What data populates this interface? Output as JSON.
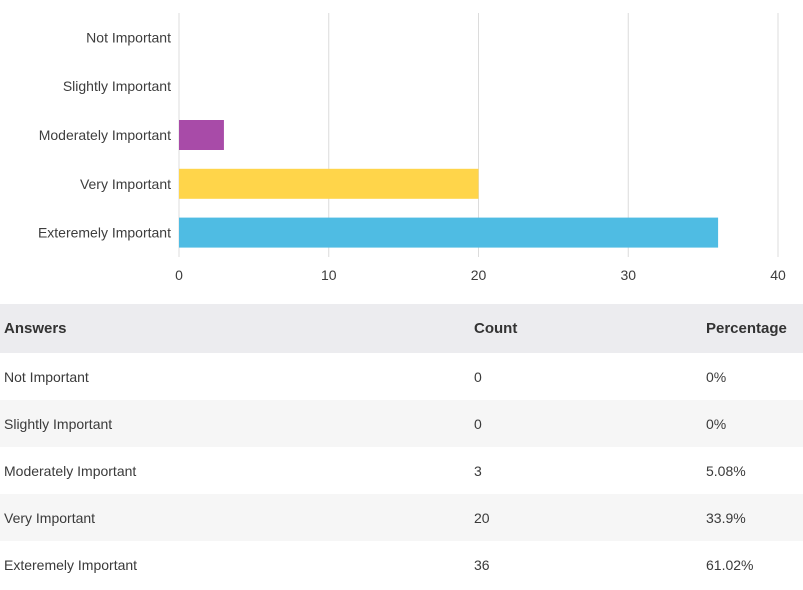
{
  "chart_data": {
    "type": "bar",
    "orientation": "horizontal",
    "categories": [
      "Not Important",
      "Slightly Important",
      "Moderately Important",
      "Very Important",
      "Exteremely Important"
    ],
    "values": [
      0,
      0,
      3,
      20,
      36
    ],
    "colors": [
      "#8e8e8e",
      "#ee6677",
      "#a84ba8",
      "#ffd54a",
      "#4fbce3"
    ],
    "xlim": [
      0,
      40
    ],
    "xticks": [
      "0",
      "10",
      "20",
      "30",
      "40"
    ],
    "grid": true,
    "title": "",
    "xlabel": "",
    "ylabel": ""
  },
  "table": {
    "headers": {
      "answers": "Answers",
      "count": "Count",
      "percentage": "Percentage"
    },
    "rows": [
      {
        "answer": "Not Important",
        "count": "0",
        "percentage": "0%"
      },
      {
        "answer": "Slightly Important",
        "count": "0",
        "percentage": "0%"
      },
      {
        "answer": "Moderately Important",
        "count": "3",
        "percentage": "5.08%"
      },
      {
        "answer": "Very Important",
        "count": "20",
        "percentage": "33.9%"
      },
      {
        "answer": "Exteremely Important",
        "count": "36",
        "percentage": "61.02%"
      }
    ]
  }
}
